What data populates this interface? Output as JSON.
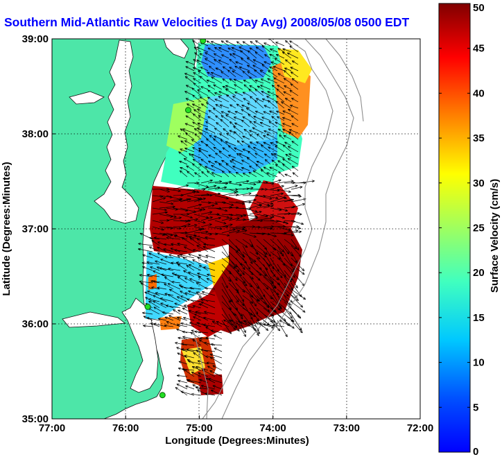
{
  "title": "Southern Mid-Atlantic Raw Velocities (1 Day Avg) 2008/05/08 0500 EDT",
  "map": {
    "xlabel": "Longitude (Degrees:Minutes)",
    "ylabel": "Latitude (Degrees:Minutes)",
    "lon_ticks": [
      "77:00",
      "76:00",
      "75:00",
      "74:00",
      "73:00",
      "72:00"
    ],
    "lat_ticks": [
      "39:00",
      "38:00",
      "37:00",
      "36:00",
      "35:00"
    ],
    "lon_range": [
      -77,
      -72
    ],
    "lat_range": [
      35,
      39
    ],
    "land_color": "#4de6a8",
    "grid": "dotted"
  },
  "colorbar": {
    "label": "Surface Velocity (cm/s)",
    "ticks": [
      "0",
      "5",
      "10",
      "15",
      "20",
      "25",
      "30",
      "35",
      "40",
      "45",
      "50"
    ],
    "range": [
      0,
      50
    ],
    "colormap": "jet"
  },
  "stations": [
    {
      "lon": -74.95,
      "lat": 38.98
    },
    {
      "lon": -75.15,
      "lat": 38.25
    },
    {
      "lon": -75.7,
      "lat": 36.18
    },
    {
      "lon": -75.5,
      "lat": 35.25
    }
  ]
}
